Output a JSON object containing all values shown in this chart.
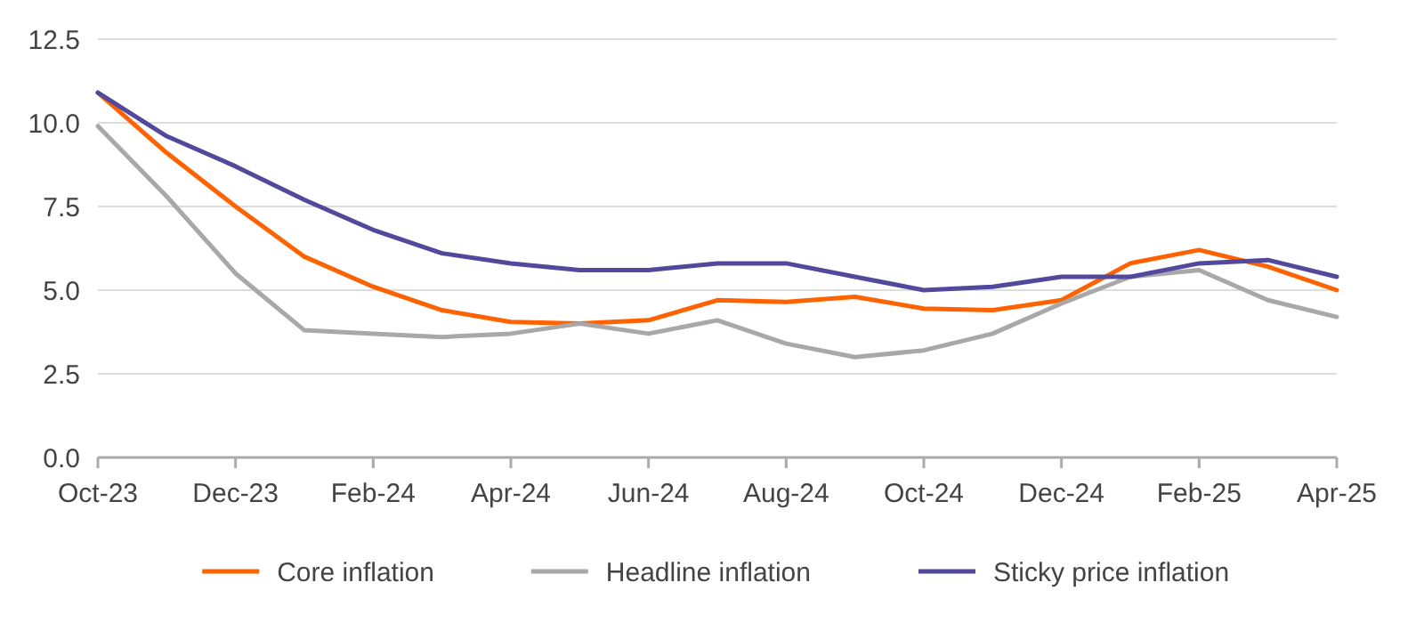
{
  "chart_data": {
    "type": "line",
    "categories": [
      "Oct-23",
      null,
      "Dec-23",
      null,
      "Feb-24",
      null,
      "Apr-24",
      null,
      "Jun-24",
      null,
      "Aug-24",
      null,
      "Oct-24",
      null,
      "Dec-24",
      null,
      "Feb-25",
      null,
      "Apr-25"
    ],
    "series": [
      {
        "name": "Core inflation",
        "color": "#ff6200",
        "values": [
          10.9,
          9.1,
          7.5,
          6.0,
          5.1,
          4.4,
          4.05,
          4.0,
          4.1,
          4.7,
          4.65,
          4.8,
          4.45,
          4.4,
          4.7,
          5.8,
          6.2,
          5.7,
          5.0
        ]
      },
      {
        "name": "Headline inflation",
        "color": "#a8a8a8",
        "values": [
          9.9,
          7.8,
          5.5,
          3.8,
          3.7,
          3.6,
          3.7,
          4.0,
          3.7,
          4.1,
          3.4,
          3.0,
          3.2,
          3.7,
          4.6,
          5.4,
          5.6,
          4.7,
          4.2
        ]
      },
      {
        "name": "Sticky price inflation",
        "color": "#52489c",
        "values": [
          10.9,
          9.6,
          8.7,
          7.7,
          6.8,
          6.1,
          5.8,
          5.6,
          5.6,
          5.8,
          5.8,
          5.4,
          5.0,
          5.1,
          5.4,
          5.4,
          5.8,
          5.9,
          5.4
        ]
      }
    ],
    "ylim": [
      0,
      12.5
    ],
    "yticks": [
      {
        "value": 0,
        "label": "0.0"
      },
      {
        "value": 2.5,
        "label": "2.5"
      },
      {
        "value": 5,
        "label": "5.0"
      },
      {
        "value": 7.5,
        "label": "7.5"
      },
      {
        "value": 10,
        "label": "10.0"
      },
      {
        "value": 12.5,
        "label": "12.5"
      }
    ],
    "grid": "y",
    "legend": "bottom"
  }
}
